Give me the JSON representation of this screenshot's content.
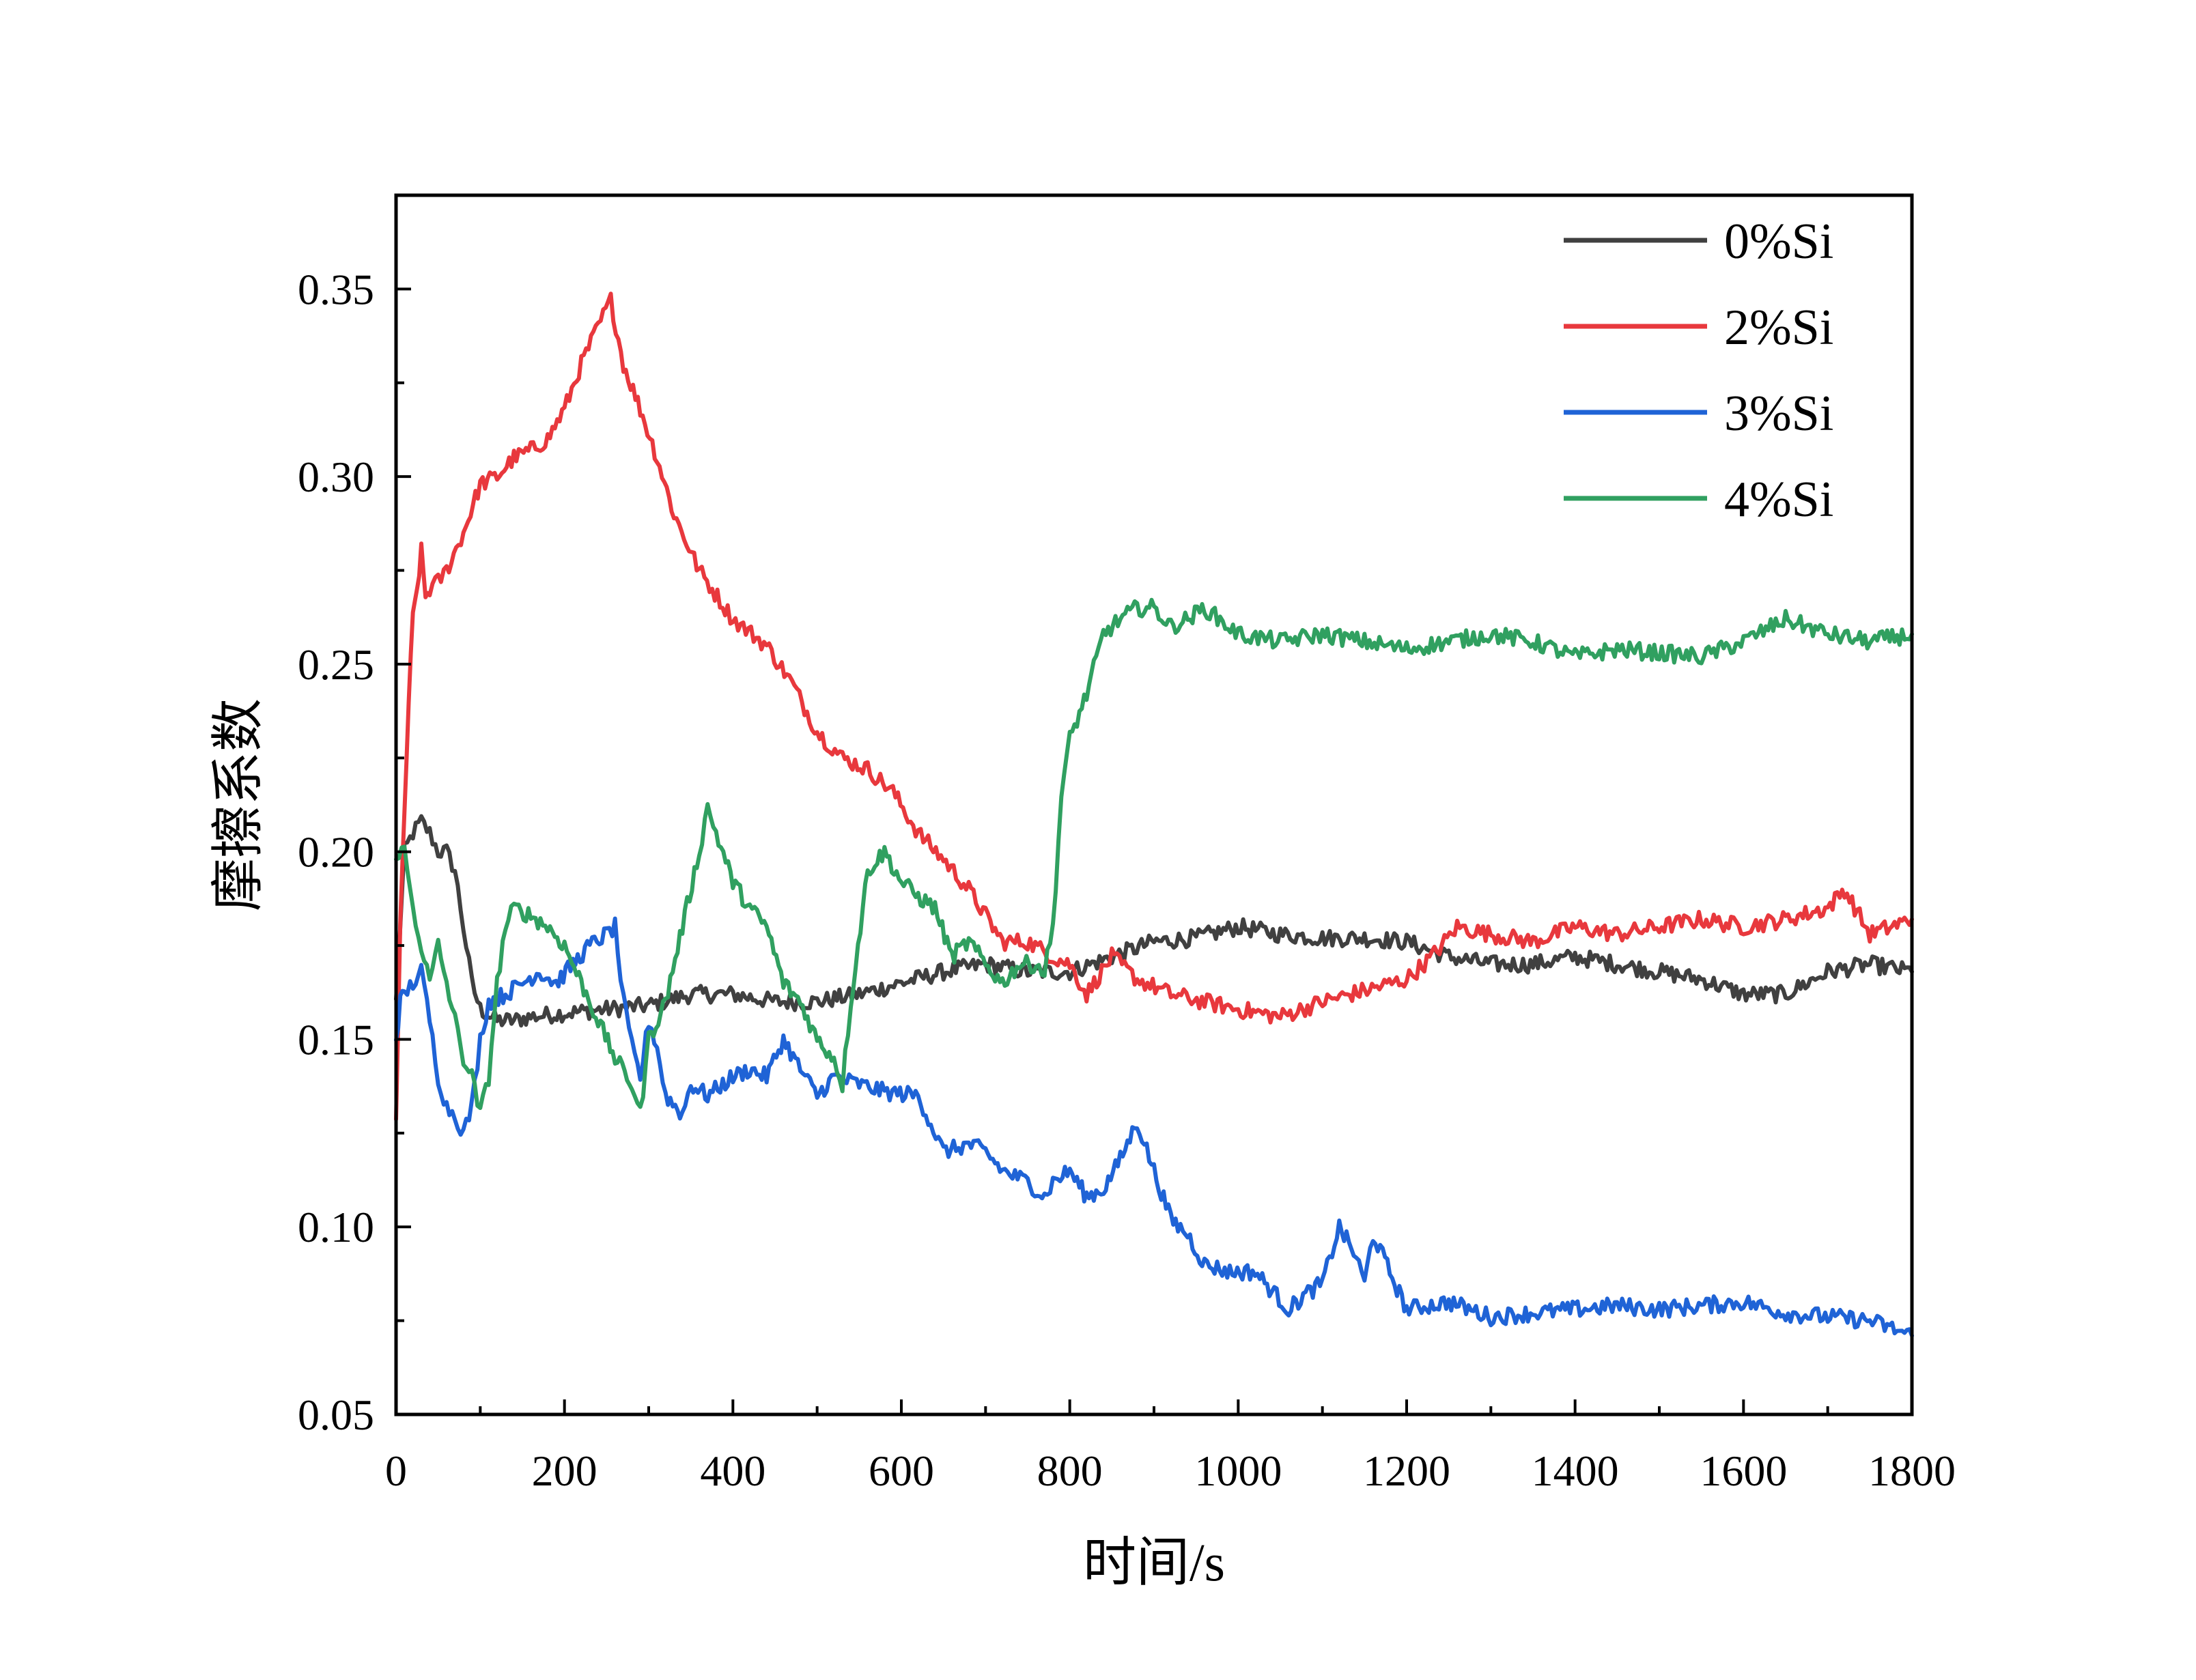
{
  "chart_data": {
    "type": "line",
    "xlabel": "时间/s",
    "ylabel": "摩擦系数",
    "xlim": [
      0,
      1800
    ],
    "ylim": [
      0.05,
      0.375
    ],
    "xticks": [
      0,
      200,
      400,
      600,
      800,
      1000,
      1200,
      1400,
      1600,
      1800
    ],
    "xtick_labels": [
      "0",
      "200",
      "400",
      "600",
      "800",
      "1000",
      "1200",
      "1400",
      "1600",
      "1800"
    ],
    "yticks": [
      0.05,
      0.1,
      0.15,
      0.2,
      0.25,
      0.3,
      0.35
    ],
    "ytick_labels": [
      "0.05",
      "0.10",
      "0.15",
      "0.20",
      "0.25",
      "0.30",
      "0.35"
    ],
    "grid": false,
    "legend_position": "top-right",
    "series": [
      {
        "name": "0%Si",
        "color": "#404040",
        "x": [
          0,
          10,
          20,
          30,
          40,
          50,
          60,
          70,
          80,
          90,
          100,
          120,
          140,
          160,
          200,
          250,
          300,
          350,
          400,
          450,
          500,
          550,
          600,
          650,
          700,
          750,
          800,
          850,
          900,
          950,
          1000,
          1050,
          1100,
          1150,
          1200,
          1250,
          1300,
          1350,
          1400,
          1450,
          1500,
          1550,
          1600,
          1650,
          1700,
          1750,
          1800
        ],
        "y": [
          0.16,
          0.2,
          0.205,
          0.208,
          0.205,
          0.2,
          0.2,
          0.195,
          0.18,
          0.165,
          0.158,
          0.155,
          0.155,
          0.156,
          0.157,
          0.158,
          0.159,
          0.162,
          0.162,
          0.16,
          0.16,
          0.162,
          0.165,
          0.168,
          0.17,
          0.168,
          0.168,
          0.172,
          0.176,
          0.177,
          0.18,
          0.178,
          0.177,
          0.177,
          0.176,
          0.172,
          0.17,
          0.17,
          0.172,
          0.17,
          0.168,
          0.166,
          0.162,
          0.162,
          0.168,
          0.17,
          0.168
        ]
      },
      {
        "name": "2%Si",
        "color": "#e8383d",
        "x": [
          0,
          5,
          10,
          15,
          20,
          25,
          30,
          35,
          40,
          50,
          60,
          80,
          100,
          120,
          140,
          160,
          180,
          200,
          220,
          240,
          255,
          270,
          290,
          310,
          330,
          360,
          400,
          440,
          470,
          500,
          530,
          560,
          590,
          620,
          650,
          680,
          700,
          720,
          750,
          780,
          800,
          820,
          850,
          880,
          920,
          960,
          1000,
          1050,
          1100,
          1150,
          1200,
          1230,
          1260,
          1300,
          1350,
          1400,
          1450,
          1500,
          1550,
          1600,
          1650,
          1700,
          1720,
          1750,
          1800
        ],
        "y": [
          0.13,
          0.18,
          0.21,
          0.24,
          0.262,
          0.27,
          0.28,
          0.268,
          0.27,
          0.272,
          0.275,
          0.285,
          0.298,
          0.3,
          0.305,
          0.307,
          0.31,
          0.318,
          0.33,
          0.34,
          0.347,
          0.33,
          0.318,
          0.305,
          0.29,
          0.275,
          0.262,
          0.255,
          0.245,
          0.232,
          0.225,
          0.222,
          0.216,
          0.205,
          0.198,
          0.19,
          0.183,
          0.176,
          0.176,
          0.172,
          0.17,
          0.162,
          0.172,
          0.166,
          0.162,
          0.16,
          0.158,
          0.156,
          0.16,
          0.163,
          0.166,
          0.172,
          0.18,
          0.178,
          0.176,
          0.18,
          0.178,
          0.18,
          0.182,
          0.18,
          0.182,
          0.185,
          0.19,
          0.178,
          0.182
        ]
      },
      {
        "name": "3%Si",
        "color": "#1f63d6",
        "x": [
          0,
          5,
          10,
          20,
          30,
          40,
          50,
          60,
          70,
          80,
          90,
          100,
          110,
          130,
          150,
          170,
          190,
          210,
          230,
          250,
          260,
          270,
          280,
          290,
          300,
          310,
          320,
          340,
          350,
          370,
          400,
          420,
          440,
          460,
          480,
          500,
          520,
          550,
          580,
          620,
          650,
          680,
          700,
          720,
          750,
          770,
          780,
          800,
          820,
          840,
          860,
          880,
          900,
          920,
          940,
          960,
          990,
          1020,
          1040,
          1060,
          1080,
          1100,
          1120,
          1140,
          1150,
          1160,
          1180,
          1200,
          1250,
          1300,
          1350,
          1400,
          1450,
          1500,
          1550,
          1600,
          1650,
          1700,
          1750,
          1800
        ],
        "y": [
          0.15,
          0.16,
          0.162,
          0.165,
          0.168,
          0.155,
          0.14,
          0.132,
          0.13,
          0.125,
          0.132,
          0.15,
          0.16,
          0.162,
          0.165,
          0.168,
          0.165,
          0.17,
          0.175,
          0.178,
          0.18,
          0.16,
          0.148,
          0.14,
          0.155,
          0.148,
          0.135,
          0.13,
          0.138,
          0.135,
          0.14,
          0.142,
          0.14,
          0.15,
          0.142,
          0.135,
          0.14,
          0.138,
          0.136,
          0.135,
          0.12,
          0.122,
          0.12,
          0.115,
          0.112,
          0.108,
          0.112,
          0.115,
          0.108,
          0.11,
          0.118,
          0.128,
          0.115,
          0.102,
          0.098,
          0.09,
          0.088,
          0.088,
          0.083,
          0.078,
          0.082,
          0.085,
          0.1,
          0.092,
          0.085,
          0.098,
          0.088,
          0.078,
          0.08,
          0.076,
          0.077,
          0.078,
          0.079,
          0.078,
          0.079,
          0.08,
          0.077,
          0.076,
          0.075,
          0.071
        ]
      },
      {
        "name": "4%Si",
        "color": "#30a060",
        "x": [
          0,
          10,
          20,
          30,
          40,
          50,
          60,
          70,
          80,
          90,
          100,
          110,
          120,
          130,
          140,
          160,
          180,
          200,
          220,
          240,
          260,
          280,
          290,
          300,
          320,
          340,
          360,
          370,
          380,
          400,
          420,
          440,
          460,
          480,
          500,
          520,
          530,
          540,
          560,
          580,
          600,
          620,
          640,
          660,
          680,
          700,
          720,
          740,
          760,
          770,
          780,
          790,
          800,
          820,
          840,
          860,
          880,
          900,
          920,
          940,
          960,
          1000,
          1050,
          1100,
          1150,
          1200,
          1250,
          1300,
          1350,
          1400,
          1450,
          1500,
          1550,
          1600,
          1650,
          1700,
          1750,
          1800
        ],
        "y": [
          0.2,
          0.2,
          0.185,
          0.175,
          0.165,
          0.175,
          0.165,
          0.155,
          0.145,
          0.14,
          0.13,
          0.14,
          0.165,
          0.18,
          0.185,
          0.183,
          0.18,
          0.175,
          0.165,
          0.155,
          0.145,
          0.138,
          0.13,
          0.15,
          0.16,
          0.18,
          0.2,
          0.212,
          0.205,
          0.192,
          0.185,
          0.18,
          0.165,
          0.16,
          0.15,
          0.145,
          0.138,
          0.16,
          0.195,
          0.2,
          0.192,
          0.188,
          0.185,
          0.172,
          0.176,
          0.17,
          0.165,
          0.17,
          0.17,
          0.168,
          0.18,
          0.215,
          0.23,
          0.242,
          0.258,
          0.262,
          0.265,
          0.265,
          0.26,
          0.262,
          0.265,
          0.258,
          0.256,
          0.258,
          0.256,
          0.254,
          0.256,
          0.258,
          0.256,
          0.252,
          0.254,
          0.253,
          0.252,
          0.256,
          0.262,
          0.258,
          0.256,
          0.258
        ]
      }
    ]
  }
}
